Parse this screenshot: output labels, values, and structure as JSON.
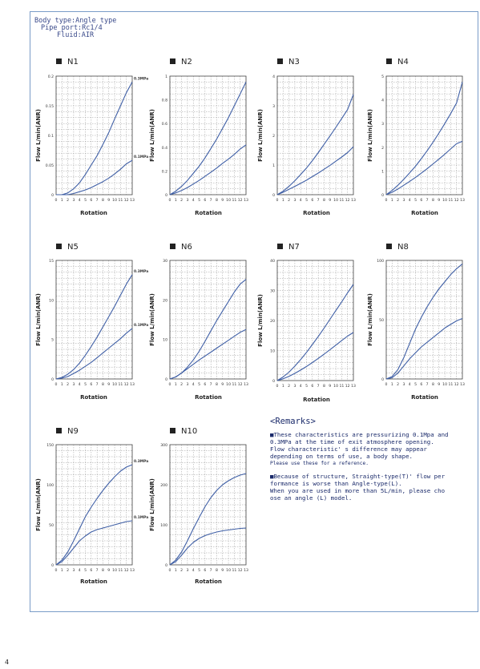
{
  "header": {
    "body_type": "Body type:Angle type",
    "pipe_port": "Pipe port:Rc1/4",
    "fluid": "Fluid:AIR"
  },
  "remarks": {
    "title": "<Remarks>",
    "items": [
      {
        "lines": [
          {
            "text": "■These characteristics are pressurizing 0.1Mpa and",
            "small": false
          },
          {
            "text": " 0.3MPa at the time of exit atmosphere opening.",
            "small": false
          },
          {
            "text": " Flow characteristic' s difference may appear",
            "small": false
          },
          {
            "text": " depending on terms of use, a body shape.",
            "small": false
          },
          {
            "text": " Please use these for a reference.",
            "small": true
          }
        ]
      },
      {
        "lines": [
          {
            "text": "■Because of structure, Straight-type(T)' flow per",
            "small": false
          },
          {
            "text": " formance is worse than Angle-type(L).",
            "small": false
          },
          {
            "text": " When you are used in more than 5L/min, please cho",
            "small": false
          },
          {
            "text": " ose an angle (L) model.",
            "small": false
          }
        ]
      }
    ]
  },
  "page_number": "4",
  "colors": {
    "curve": "#3f5fa6",
    "grid": "#9a9a9a",
    "axis": "#444444",
    "frame": "#7a9cc8"
  },
  "chart_data": [
    {
      "type": "line",
      "title": "N1",
      "ylabel": "Flow L/min(ANR)",
      "xlabel": "Rotation",
      "x": [
        0,
        1,
        2,
        3,
        4,
        5,
        6,
        7,
        8,
        9,
        10,
        11,
        12,
        13
      ],
      "ylim": [
        0,
        0.2
      ],
      "yticks": [
        "0",
        "0.05",
        "0.1",
        "0.15",
        "0.2"
      ],
      "series": [
        {
          "name": "0.3MPa",
          "values": [
            0,
            0,
            0.003,
            0.01,
            0.02,
            0.034,
            0.05,
            0.066,
            0.085,
            0.105,
            0.128,
            0.15,
            0.172,
            0.19
          ]
        },
        {
          "name": "0.1MPa",
          "values": [
            0,
            0,
            0,
            0.002,
            0.005,
            0.008,
            0.012,
            0.017,
            0.022,
            0.028,
            0.035,
            0.043,
            0.052,
            0.058
          ]
        }
      ]
    },
    {
      "type": "line",
      "title": "N2",
      "ylabel": "Flow L/min(ANR)",
      "xlabel": "Rotation",
      "x": [
        0,
        1,
        2,
        3,
        4,
        5,
        6,
        7,
        8,
        9,
        10,
        11,
        12,
        13
      ],
      "ylim": [
        0,
        1
      ],
      "yticks": [
        "0",
        "0.2",
        "0.4",
        "0.6",
        "0.8",
        "1"
      ],
      "series": [
        {
          "values": [
            0,
            0.03,
            0.07,
            0.12,
            0.18,
            0.24,
            0.31,
            0.39,
            0.47,
            0.56,
            0.65,
            0.75,
            0.85,
            0.95
          ]
        },
        {
          "values": [
            0,
            0.015,
            0.035,
            0.06,
            0.09,
            0.12,
            0.155,
            0.19,
            0.225,
            0.265,
            0.3,
            0.34,
            0.385,
            0.42
          ]
        }
      ]
    },
    {
      "type": "line",
      "title": "N3",
      "ylabel": "Flow L/min(ANR)",
      "xlabel": "Rotation",
      "x": [
        0,
        1,
        2,
        3,
        4,
        5,
        6,
        7,
        8,
        9,
        10,
        11,
        12,
        13
      ],
      "ylim": [
        0,
        4
      ],
      "yticks": [
        "0",
        "1",
        "2",
        "3",
        "4"
      ],
      "series": [
        {
          "values": [
            0,
            0.12,
            0.28,
            0.47,
            0.68,
            0.9,
            1.15,
            1.42,
            1.7,
            1.98,
            2.27,
            2.57,
            2.87,
            3.38
          ]
        },
        {
          "values": [
            0,
            0.08,
            0.18,
            0.28,
            0.38,
            0.49,
            0.61,
            0.73,
            0.86,
            0.99,
            1.13,
            1.27,
            1.42,
            1.62
          ]
        }
      ]
    },
    {
      "type": "line",
      "title": "N4",
      "ylabel": "Flow L/min(ANR)",
      "xlabel": "Rotation",
      "x": [
        0,
        1,
        2,
        3,
        4,
        5,
        6,
        7,
        8,
        9,
        10,
        11,
        12,
        13
      ],
      "ylim": [
        0,
        5
      ],
      "yticks": [
        "0",
        "1",
        "2",
        "3",
        "4",
        "5"
      ],
      "series": [
        {
          "values": [
            0,
            0.18,
            0.4,
            0.65,
            0.92,
            1.2,
            1.52,
            1.86,
            2.22,
            2.6,
            3.0,
            3.42,
            3.86,
            4.75
          ]
        },
        {
          "values": [
            0,
            0.1,
            0.24,
            0.4,
            0.56,
            0.73,
            0.91,
            1.1,
            1.3,
            1.5,
            1.71,
            1.93,
            2.15,
            2.25
          ]
        }
      ]
    },
    {
      "type": "line",
      "title": "N5",
      "ylabel": "Flow L/min(ANR)",
      "xlabel": "Rotation",
      "x": [
        0,
        1,
        2,
        3,
        4,
        5,
        6,
        7,
        8,
        9,
        10,
        11,
        12,
        13
      ],
      "ylim": [
        0,
        15
      ],
      "yticks": [
        "0",
        "5",
        "10",
        "15"
      ],
      "series": [
        {
          "name": "0.3MPa",
          "values": [
            0,
            0.2,
            0.6,
            1.2,
            2.0,
            3.0,
            4.1,
            5.3,
            6.6,
            7.9,
            9.2,
            10.6,
            12.0,
            13.2
          ]
        },
        {
          "name": "0.1MPa",
          "values": [
            0,
            0.1,
            0.3,
            0.7,
            1.1,
            1.6,
            2.1,
            2.7,
            3.3,
            3.9,
            4.5,
            5.1,
            5.8,
            6.4
          ]
        }
      ]
    },
    {
      "type": "line",
      "title": "N6",
      "ylabel": "Flow L/min(ANR)",
      "xlabel": "Rotation",
      "x": [
        0,
        1,
        2,
        3,
        4,
        5,
        6,
        7,
        8,
        9,
        10,
        11,
        12,
        13
      ],
      "ylim": [
        0,
        30
      ],
      "yticks": [
        "0",
        "10",
        "20",
        "30"
      ],
      "series": [
        {
          "values": [
            0,
            0.5,
            1.5,
            3.0,
            4.8,
            7.0,
            9.5,
            12.2,
            14.8,
            17.2,
            19.6,
            22.0,
            24.0,
            25.2
          ]
        },
        {
          "values": [
            0,
            0.5,
            1.5,
            2.6,
            3.7,
            4.8,
            5.8,
            6.8,
            7.8,
            8.8,
            9.8,
            10.8,
            11.8,
            12.5
          ]
        }
      ]
    },
    {
      "type": "line",
      "title": "N7",
      "ylabel": "Flow L/min(ANR)",
      "xlabel": "Rotation",
      "x": [
        0,
        1,
        2,
        3,
        4,
        5,
        6,
        7,
        8,
        9,
        10,
        11,
        12,
        13
      ],
      "ylim": [
        0,
        40
      ],
      "yticks": [
        "0",
        "10",
        "20",
        "30",
        "40"
      ],
      "series": [
        {
          "values": [
            0,
            1.2,
            2.8,
            4.8,
            7.0,
            9.4,
            12.0,
            14.7,
            17.5,
            20.4,
            23.3,
            26.2,
            29.2,
            32.0
          ]
        },
        {
          "values": [
            0,
            0.6,
            1.4,
            2.4,
            3.5,
            4.7,
            6.0,
            7.4,
            8.8,
            10.3,
            11.8,
            13.3,
            14.8,
            16.0
          ]
        }
      ]
    },
    {
      "type": "line",
      "title": "N8",
      "ylabel": "Flow L/min(ANR)",
      "xlabel": "Rotation",
      "x": [
        0,
        1,
        2,
        3,
        4,
        5,
        6,
        7,
        8,
        9,
        10,
        11,
        12,
        13
      ],
      "ylim": [
        0,
        100
      ],
      "yticks": [
        "0",
        "50",
        "100"
      ],
      "series": [
        {
          "values": [
            0,
            2,
            8,
            18,
            30,
            42,
            52,
            61,
            69,
            76,
            82,
            88,
            93,
            97
          ]
        },
        {
          "values": [
            0,
            1,
            5,
            11,
            17,
            22,
            27,
            31,
            35,
            39,
            43,
            46,
            49,
            51
          ]
        }
      ]
    },
    {
      "type": "line",
      "title": "N9",
      "ylabel": "Flow L/min(ANR)",
      "xlabel": "Rotation",
      "x": [
        0,
        1,
        2,
        3,
        4,
        5,
        6,
        7,
        8,
        9,
        10,
        11,
        12,
        13
      ],
      "ylim": [
        0,
        150
      ],
      "yticks": [
        "0",
        "50",
        "100",
        "150"
      ],
      "series": [
        {
          "name": "0.3MPa",
          "values": [
            0,
            6,
            16,
            30,
            45,
            60,
            72,
            83,
            93,
            102,
            110,
            117,
            122,
            125
          ]
        },
        {
          "name": "0.1MPa",
          "values": [
            0,
            4,
            12,
            21,
            30,
            36,
            41,
            44,
            46,
            48,
            50,
            52,
            54,
            55
          ]
        }
      ]
    },
    {
      "type": "line",
      "title": "N10",
      "ylabel": "Flow L/min(ANR)",
      "xlabel": "Rotation",
      "x": [
        0,
        1,
        2,
        3,
        4,
        5,
        6,
        7,
        8,
        9,
        10,
        11,
        12,
        13
      ],
      "ylim": [
        0,
        300
      ],
      "yticks": [
        "0",
        "100",
        "200",
        "300"
      ],
      "series": [
        {
          "values": [
            0,
            12,
            32,
            60,
            90,
            118,
            145,
            168,
            186,
            200,
            210,
            218,
            224,
            228
          ]
        },
        {
          "values": [
            0,
            8,
            24,
            42,
            56,
            66,
            73,
            78,
            82,
            85,
            87,
            89,
            91,
            92
          ]
        }
      ]
    }
  ]
}
